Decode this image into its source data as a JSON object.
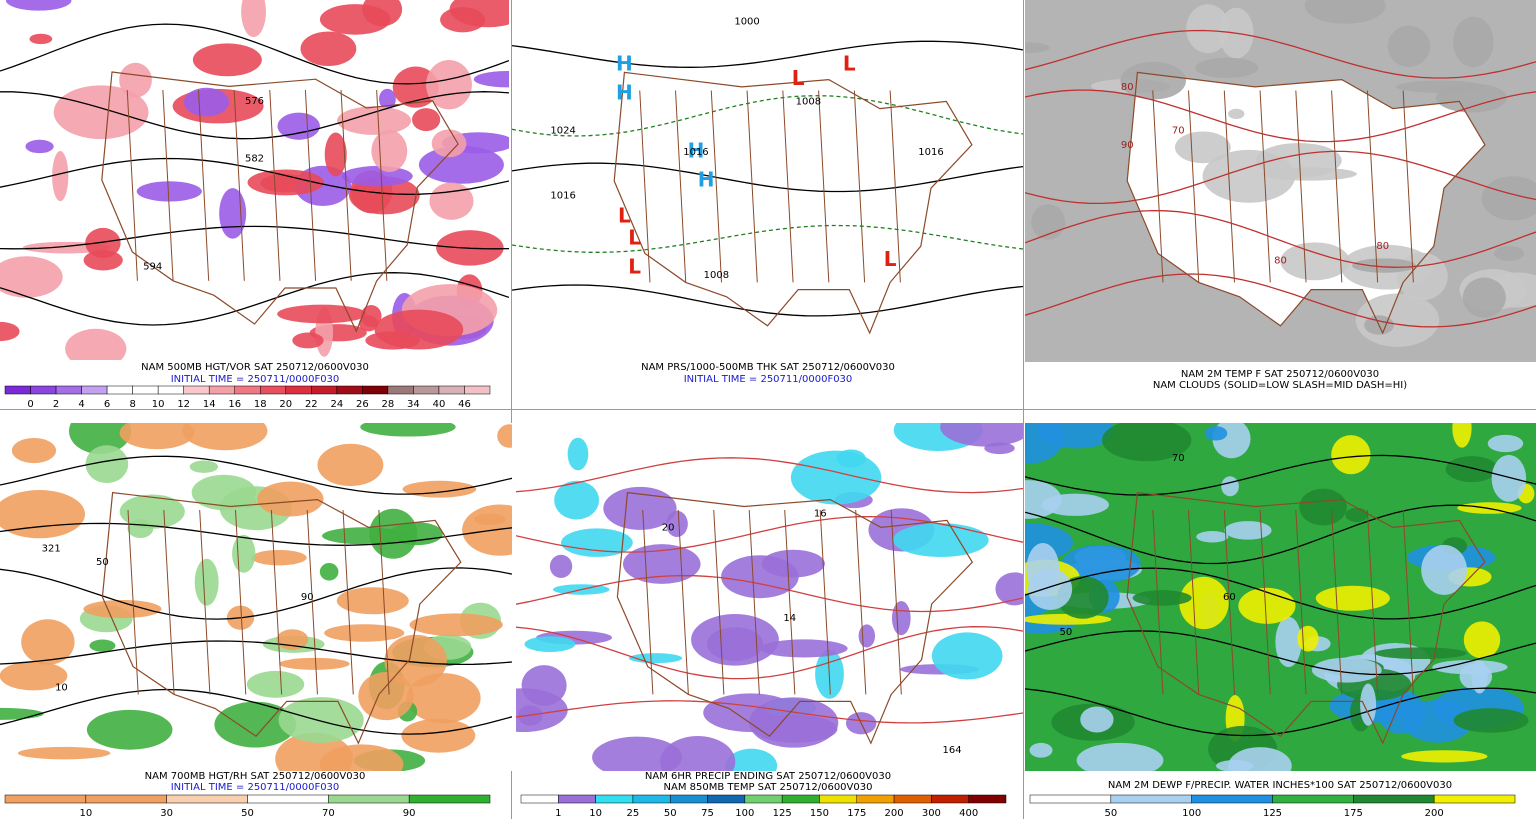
{
  "panels": [
    {
      "caption": [
        "NAM 500MB HGT/VOR SAT 250712/0600V030",
        "INITIAL TIME = 250711/0000F030"
      ],
      "colorbar": {
        "labels": [
          0,
          2,
          4,
          6,
          8,
          10,
          12,
          14,
          16,
          18,
          20,
          22,
          24,
          26,
          28,
          34,
          40,
          46
        ],
        "colors": [
          "#7a2ad8",
          "#8c45e0",
          "#a46ee6",
          "#c2a2ee",
          "#ffffff",
          "#ffffff",
          "#ffffff",
          "#f8c8cc",
          "#f4a0a8",
          "#ef7884",
          "#e85060",
          "#dc3040",
          "#c41c2c",
          "#a00c18",
          "#800008",
          "#9c7878",
          "#b89898",
          "#d8b0b8",
          "#f4c0c8"
        ]
      },
      "map_labels": [
        "582",
        "594",
        "576"
      ]
    },
    {
      "caption": [
        "NAM PRS/1000-500MB THK SAT 250712/0600V030",
        "INITIAL TIME = 250711/0000F030"
      ],
      "map_labels": [
        "L",
        "L",
        "L",
        "L",
        "L",
        "L",
        "H",
        "H",
        "H",
        "H",
        "1024",
        "1016",
        "1016",
        "1008",
        "1008",
        "1000",
        "1016"
      ]
    },
    {
      "caption": [
        "NAM 2M TEMP F SAT 250712/0600V030",
        "NAM CLOUDS (SOLID=LOW SLASH=MID DASH=HI)"
      ],
      "map_labels": [
        "80",
        "70",
        "80",
        "80",
        "90"
      ]
    },
    {
      "caption": [
        "NAM 700MB HGT/RH SAT 250712/0600V030",
        "INITIAL TIME = 250711/0000F030"
      ],
      "colorbar": {
        "labels": [
          10,
          30,
          50,
          70,
          90
        ],
        "colors": [
          "#f0a060",
          "#f0a060",
          "#f8d0b0",
          "#ffffff",
          "#9ad890",
          "#30b030"
        ]
      },
      "map_labels": [
        "321",
        "50",
        "90",
        "10"
      ]
    },
    {
      "caption": [
        "NAM 6HR PRECIP ENDING SAT 250712/0600V030",
        "NAM 850MB TEMP SAT 250712/0600V030"
      ],
      "colorbar": {
        "labels": [
          1,
          10,
          25,
          50,
          75,
          100,
          125,
          150,
          175,
          200,
          300,
          400
        ],
        "colors": [
          "#ffffff",
          "#9a70d8",
          "#30e0f0",
          "#20b8e8",
          "#1890d0",
          "#1068b0",
          "#70d070",
          "#30b030",
          "#f0e000",
          "#f0a000",
          "#e06000",
          "#c02000",
          "#800000"
        ]
      },
      "map_labels": [
        "20",
        "16",
        "14",
        "164"
      ]
    },
    {
      "caption": [
        "NAM 2M DEWP F/PRECIP. WATER INCHES*100 SAT 250712/0600V030"
      ],
      "colorbar": {
        "labels": [
          50,
          100,
          125,
          175,
          200
        ],
        "colors": [
          "#ffffff",
          "#a8d0f0",
          "#2090e0",
          "#30b040",
          "#208830",
          "#f0f000"
        ]
      },
      "map_labels": [
        "70",
        "60",
        "50"
      ]
    }
  ]
}
